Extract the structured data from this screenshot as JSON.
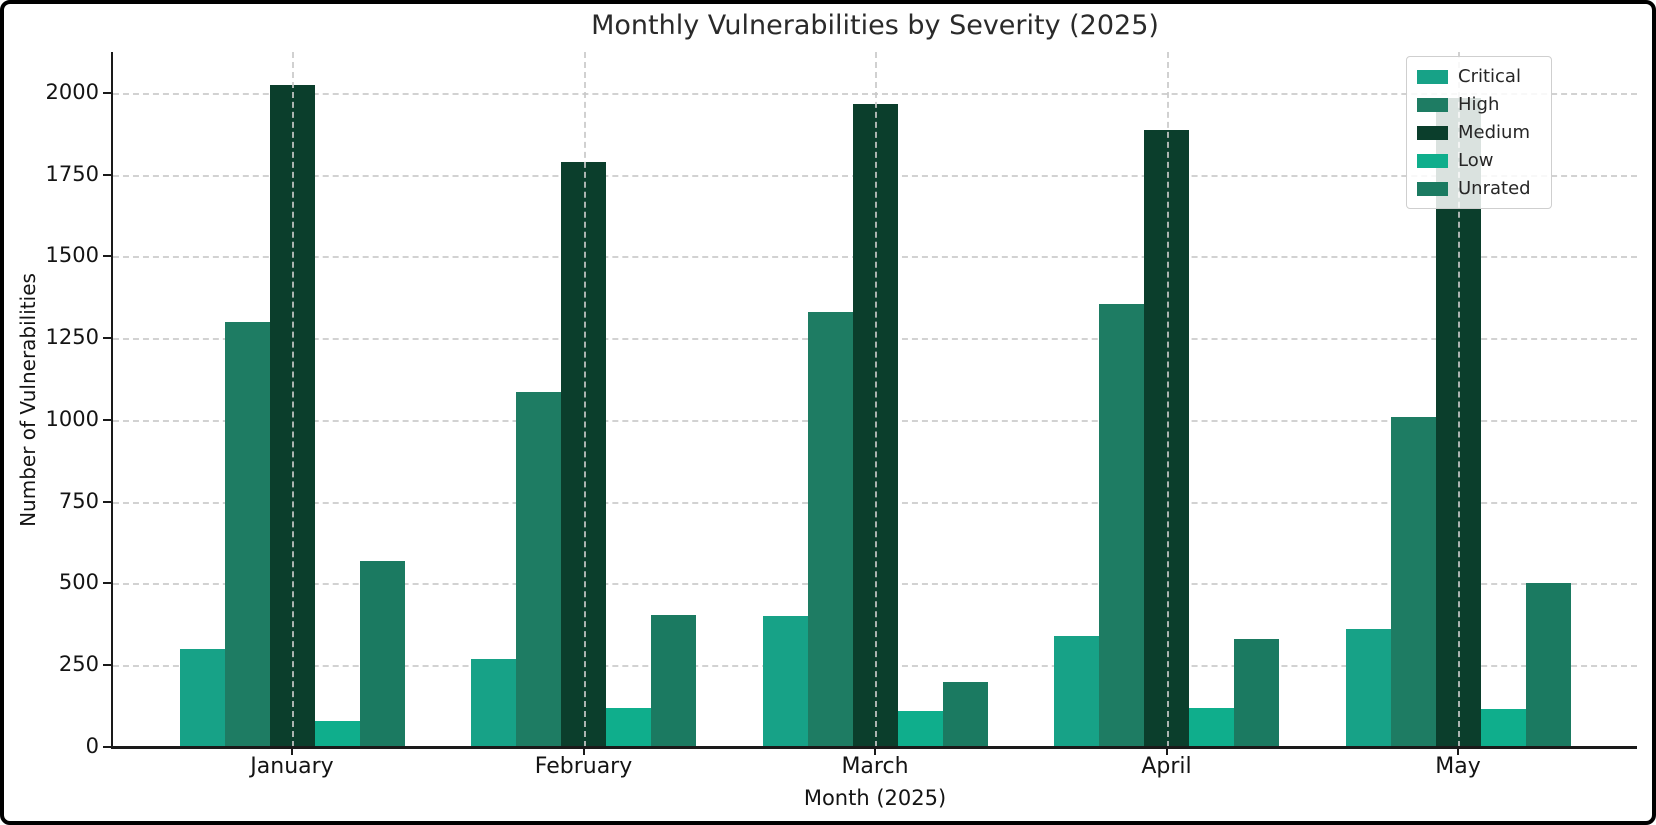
{
  "chart_data": {
    "type": "bar",
    "title": "Monthly Vulnerabilities by Severity (2025)",
    "xlabel": "Month (2025)",
    "ylabel": "Number of Vulnerabilities",
    "categories": [
      "January",
      "February",
      "March",
      "April",
      "May"
    ],
    "series": [
      {
        "name": "Critical",
        "color": "#17a287",
        "values": [
          300,
          270,
          400,
          340,
          360
        ]
      },
      {
        "name": "High",
        "color": "#1e7c63",
        "values": [
          1300,
          1085,
          1330,
          1355,
          1010
        ]
      },
      {
        "name": "Medium",
        "color": "#0b3e2c",
        "values": [
          2025,
          1790,
          1965,
          1885,
          1985
        ]
      },
      {
        "name": "Low",
        "color": "#0fae8c",
        "values": [
          80,
          120,
          110,
          120,
          115
        ]
      },
      {
        "name": "Unrated",
        "color": "#1b7a61",
        "values": [
          570,
          405,
          200,
          330,
          500
        ]
      }
    ],
    "yticks": [
      0,
      250,
      500,
      750,
      1000,
      1250,
      1500,
      1750,
      2000
    ],
    "ylim": [
      0,
      2125
    ],
    "grid": true,
    "grid_style": "dashed",
    "legend_position": "upper right",
    "axis_color": "#1a1a1a",
    "gridline_color": "#d2d2d2"
  }
}
